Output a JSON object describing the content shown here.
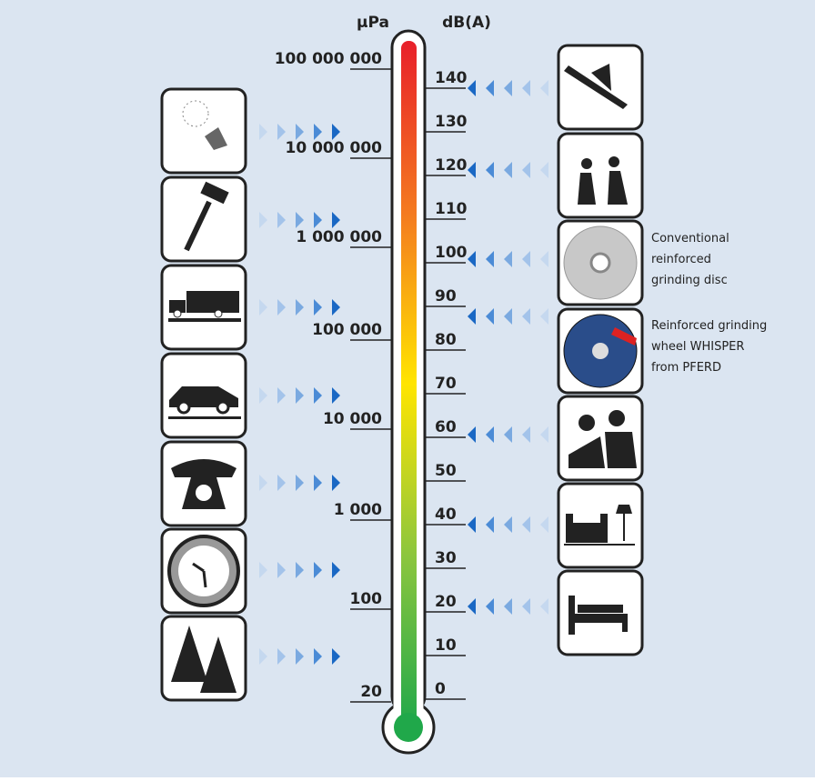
{
  "units": {
    "pressure": "μPa",
    "level": "dB(A)"
  },
  "pressure_labels": [
    "100 000 000",
    "10 000 000",
    "1 000 000",
    "100 000",
    "10 000",
    "1 000",
    "100",
    "20"
  ],
  "level_labels": [
    "140",
    "130",
    "120",
    "110",
    "100",
    "90",
    "80",
    "70",
    "60",
    "50",
    "40",
    "30",
    "20",
    "10",
    "0"
  ],
  "notes": [
    [
      "Conventional",
      "reinforced",
      "grinding disc"
    ],
    [
      "Reinforced grinding",
      "wheel WHISPER",
      "from PFERD"
    ]
  ]
}
